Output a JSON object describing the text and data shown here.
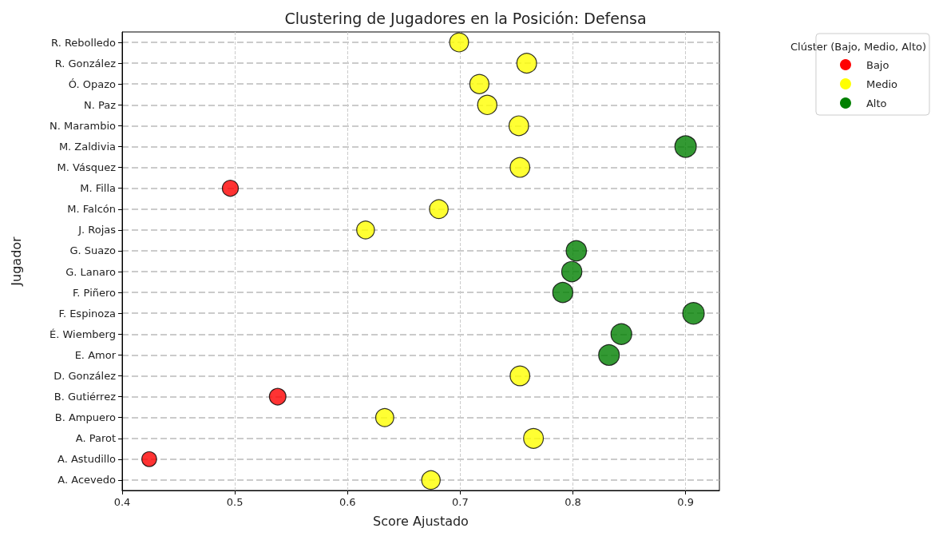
{
  "chart_data": {
    "type": "bubble",
    "title": "Clustering de Jugadores en la Posición: Defensa",
    "xlabel": "Score Ajustado",
    "ylabel": "Jugador",
    "legend_title": "Clúster (Bajo, Medio, Alto)",
    "orientation": "horizontal",
    "categories": [
      "R. Rebolledo",
      "R. González",
      "Ó. Opazo",
      "N. Paz",
      "N. Marambio",
      "M. Zaldivia",
      "M. Vásquez",
      "M. Filla",
      "M. Falcón",
      "J. Rojas",
      "G. Suazo",
      "G. Lanaro",
      "F. Piñero",
      "F. Espinoza",
      "É. Wiemberg",
      "E. Amor",
      "D. González",
      "B. Gutiérrez",
      "B. Ampuero",
      "A. Parot",
      "A. Astudillo",
      "A. Acevedo"
    ],
    "series": [
      {
        "name": "Bajo",
        "color": "#ff0000",
        "values": [
          null,
          null,
          null,
          null,
          null,
          null,
          null,
          0.496,
          null,
          null,
          null,
          null,
          null,
          null,
          null,
          null,
          null,
          0.538,
          null,
          null,
          0.424,
          null
        ],
        "sizes": [
          null,
          null,
          null,
          null,
          null,
          null,
          null,
          0.55,
          null,
          null,
          null,
          null,
          null,
          null,
          null,
          null,
          null,
          0.59,
          null,
          null,
          0.47,
          null
        ]
      },
      {
        "name": "Medio",
        "color": "#ffff00",
        "values": [
          0.699,
          0.759,
          0.717,
          0.724,
          0.752,
          null,
          0.753,
          null,
          0.681,
          0.616,
          null,
          null,
          null,
          null,
          null,
          null,
          0.753,
          null,
          0.633,
          0.765,
          null,
          0.674
        ],
        "sizes": [
          0.77,
          0.84,
          0.79,
          0.8,
          0.83,
          null,
          0.83,
          null,
          0.75,
          0.68,
          null,
          null,
          null,
          null,
          null,
          null,
          0.83,
          null,
          0.7,
          0.84,
          null,
          0.74
        ]
      },
      {
        "name": "Alto",
        "color": "#008000",
        "values": [
          null,
          null,
          null,
          null,
          null,
          0.9,
          null,
          null,
          null,
          null,
          0.803,
          0.799,
          0.791,
          0.907,
          0.843,
          0.832,
          null,
          null,
          null,
          null,
          null,
          null
        ],
        "sizes": [
          null,
          null,
          null,
          null,
          null,
          0.99,
          null,
          null,
          null,
          null,
          0.89,
          0.88,
          0.87,
          1,
          0.93,
          0.92,
          null,
          null,
          null,
          null,
          null,
          null
        ]
      }
    ],
    "xlim": [
      0.4,
      0.93
    ],
    "xticks": [
      0.4,
      0.5,
      0.6,
      0.7,
      0.8,
      0.9
    ],
    "grid": true,
    "legend": "top right",
    "marker": "circle"
  }
}
